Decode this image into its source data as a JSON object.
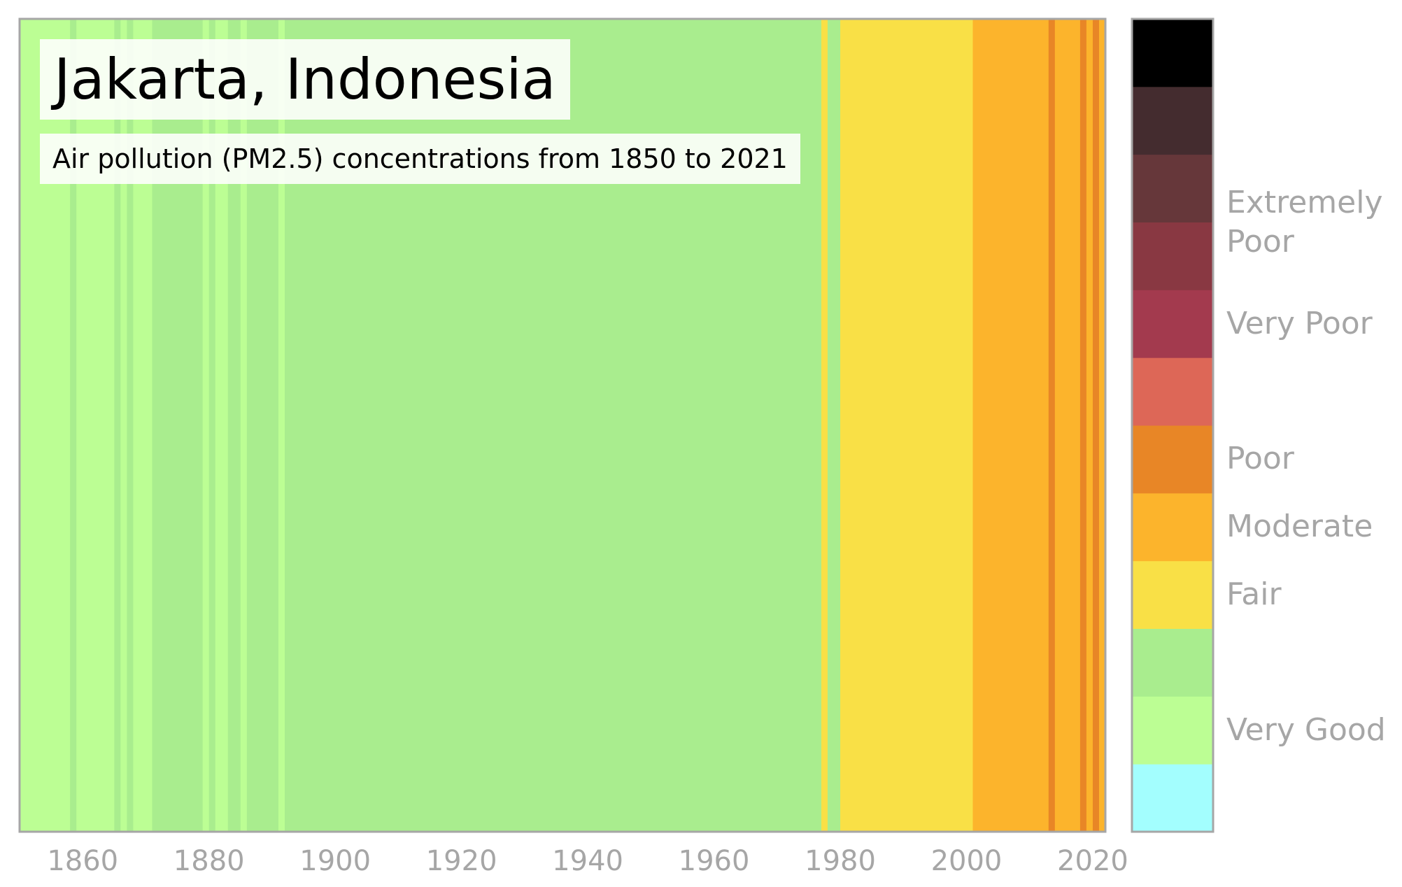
{
  "chart_data": {
    "type": "heatmap",
    "title": "Jakarta, Indonesia",
    "subtitle": "Air pollution (PM2.5) concentrations from 1850 to 2021",
    "x_range": [
      1850,
      2022
    ],
    "x_ticks": [
      "1860",
      "1880",
      "1900",
      "1920",
      "1940",
      "1960",
      "1980",
      "2000",
      "2020"
    ],
    "grid": false,
    "legend_position": "right",
    "scale_levels": [
      {
        "level": 1,
        "color": "#a3fefe"
      },
      {
        "level": 2,
        "color": "#bcfe94"
      },
      {
        "level": 3,
        "color": "#a9ed8e"
      },
      {
        "level": 4,
        "color": "#f9e046"
      },
      {
        "level": 5,
        "color": "#fcb42c"
      },
      {
        "level": 6,
        "color": "#e88626"
      },
      {
        "level": 7,
        "color": "#dd6757"
      },
      {
        "level": 8,
        "color": "#a33a4e"
      },
      {
        "level": 9,
        "color": "#893842"
      },
      {
        "level": 10,
        "color": "#66373a"
      },
      {
        "level": 11,
        "color": "#442c2f"
      },
      {
        "level": 12,
        "color": "#000000"
      }
    ],
    "category_labels": [
      {
        "label": "Very Good",
        "level": 2
      },
      {
        "label": "Fair",
        "level": 4
      },
      {
        "label": "Moderate",
        "level": 5
      },
      {
        "label": "Poor",
        "level": 6
      },
      {
        "label": "Very Poor",
        "level": 8
      },
      {
        "label": "Extremely\nPoor",
        "level": 9.5
      }
    ],
    "year_levels": [
      {
        "start": 1850,
        "end": 1858,
        "level": 2
      },
      {
        "start": 1858,
        "end": 1859,
        "level": 3
      },
      {
        "start": 1859,
        "end": 1865,
        "level": 2
      },
      {
        "start": 1865,
        "end": 1866,
        "level": 3
      },
      {
        "start": 1866,
        "end": 1867,
        "level": 2
      },
      {
        "start": 1867,
        "end": 1868,
        "level": 3
      },
      {
        "start": 1868,
        "end": 1871,
        "level": 2
      },
      {
        "start": 1871,
        "end": 1874,
        "level": 3
      },
      {
        "start": 1874,
        "end": 1879,
        "level": 3
      },
      {
        "start": 1879,
        "end": 1880,
        "level": 2
      },
      {
        "start": 1880,
        "end": 1881,
        "level": 3
      },
      {
        "start": 1881,
        "end": 1883,
        "level": 2
      },
      {
        "start": 1883,
        "end": 1885,
        "level": 3
      },
      {
        "start": 1885,
        "end": 1886,
        "level": 2
      },
      {
        "start": 1886,
        "end": 1891,
        "level": 3
      },
      {
        "start": 1891,
        "end": 1892,
        "level": 2
      },
      {
        "start": 1892,
        "end": 1977,
        "level": 3
      },
      {
        "start": 1977,
        "end": 1978,
        "level": 4
      },
      {
        "start": 1978,
        "end": 1980,
        "level": 3
      },
      {
        "start": 1980,
        "end": 2001,
        "level": 4
      },
      {
        "start": 2001,
        "end": 2013,
        "level": 5
      },
      {
        "start": 2013,
        "end": 2014,
        "level": 6
      },
      {
        "start": 2014,
        "end": 2018,
        "level": 5
      },
      {
        "start": 2018,
        "end": 2019,
        "level": 6
      },
      {
        "start": 2019,
        "end": 2020,
        "level": 5
      },
      {
        "start": 2020,
        "end": 2021,
        "level": 6
      },
      {
        "start": 2021,
        "end": 2022,
        "level": 5
      }
    ]
  }
}
